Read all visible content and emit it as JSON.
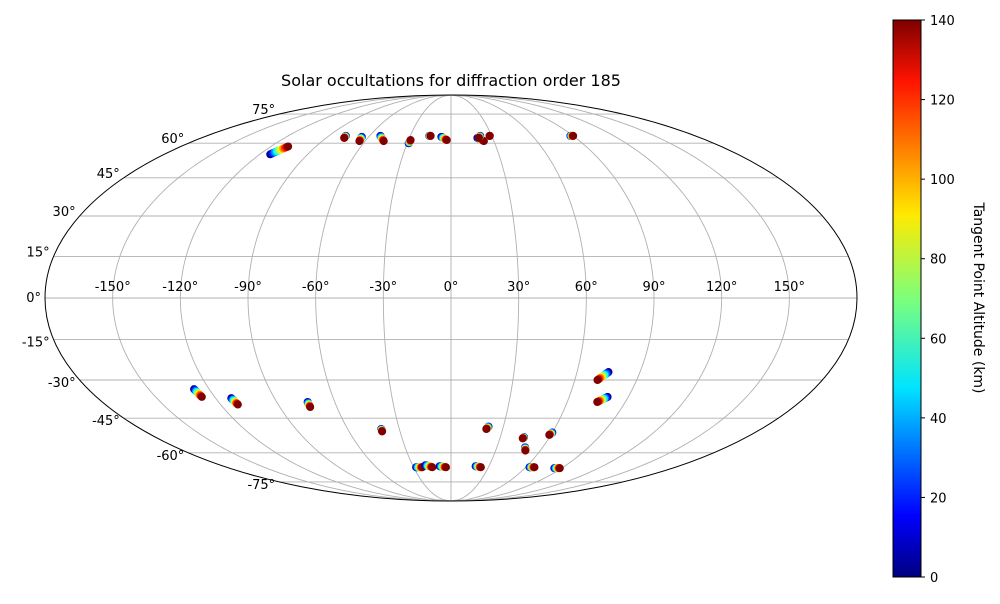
{
  "chart_data": {
    "type": "scatter",
    "projection": "mollweide",
    "title": "Solar occultations for diffraction order 185",
    "grid": true,
    "lon_ticks": [
      -150,
      -120,
      -90,
      -60,
      -30,
      0,
      30,
      60,
      90,
      120,
      150
    ],
    "lat_ticks": [
      -75,
      -60,
      -45,
      -30,
      -15,
      0,
      15,
      30,
      45,
      60,
      75
    ],
    "lon_tick_labels": [
      "-150°",
      "-120°",
      "-90°",
      "-60°",
      "-30°",
      "0°",
      "30°",
      "60°",
      "90°",
      "120°",
      "150°"
    ],
    "lat_tick_labels": [
      "-75°",
      "-60°",
      "-45°",
      "-30°",
      "-15°",
      "0°",
      "15°",
      "30°",
      "45°",
      "60°",
      "75°"
    ],
    "colorbar": {
      "label": "Tangent Point Altitude (km)",
      "colormap": "jet",
      "range": [
        0,
        140
      ],
      "ticks": [
        0,
        20,
        40,
        60,
        80,
        100,
        120,
        140
      ],
      "tick_labels": [
        "0",
        "20",
        "40",
        "60",
        "80",
        "100",
        "120",
        "140"
      ]
    },
    "occultations": [
      {
        "lon_start": -113.5,
        "lat_start": 55.0,
        "lon_end": -108.5,
        "lat_end": 58.5
      },
      {
        "lon_start": -77.5,
        "lat_start": 63.5,
        "lon_end": -77.0,
        "lat_end": 62.5
      },
      {
        "lon_start": -65.0,
        "lat_start": 63.0,
        "lon_end": -64.0,
        "lat_end": 61.0
      },
      {
        "lon_start": -52.0,
        "lat_start": 63.5,
        "lon_end": -47.0,
        "lat_end": 61.0
      },
      {
        "lon_start": -29.0,
        "lat_start": 60.0,
        "lon_end": -28.5,
        "lat_end": 61.5
      },
      {
        "lon_start": -16.0,
        "lat_start": 63.5,
        "lon_end": -15.0,
        "lat_end": 63.5
      },
      {
        "lon_start": -7.0,
        "lat_start": 63.0,
        "lon_end": -3.0,
        "lat_end": 61.5
      },
      {
        "lon_start": 19.0,
        "lat_start": 62.5,
        "lon_end": 23.0,
        "lat_end": 61.0
      },
      {
        "lon_start": 21.5,
        "lat_start": 63.5,
        "lon_end": 20.0,
        "lat_end": 62.5
      },
      {
        "lon_start": 28.5,
        "lat_start": 63.5,
        "lon_end": 28.5,
        "lat_end": 63.5
      },
      {
        "lon_start": 88.0,
        "lat_start": 63.5,
        "lon_end": 90.0,
        "lat_end": 63.5
      },
      {
        "lon_start": -127.5,
        "lat_start": -33.5,
        "lon_end": -126.5,
        "lat_end": -36.5
      },
      {
        "lon_start": -112.0,
        "lat_start": -37.0,
        "lon_end": -111.0,
        "lat_end": -39.5
      },
      {
        "lon_start": -74.0,
        "lat_start": -38.5,
        "lon_end": -74.0,
        "lat_end": -40.5
      },
      {
        "lon_start": -40.5,
        "lat_start": -49.5,
        "lon_end": -40.5,
        "lat_end": -50.5
      },
      {
        "lon_start": -28.0,
        "lat_start": -67.0,
        "lon_end": -23.0,
        "lat_end": -67.0
      },
      {
        "lon_start": -20.0,
        "lat_start": -66.0,
        "lon_end": -15.0,
        "lat_end": -67.0
      },
      {
        "lon_start": -9.0,
        "lat_start": -66.5,
        "lon_end": -4.0,
        "lat_end": -67.0
      },
      {
        "lon_start": 21.5,
        "lat_start": -48.5,
        "lon_end": 20.5,
        "lat_end": -49.5
      },
      {
        "lon_start": 19.5,
        "lat_start": -66.5,
        "lon_end": 24.0,
        "lat_end": -67.0
      },
      {
        "lon_start": 44.5,
        "lat_start": -53.0,
        "lon_end": 44.0,
        "lat_end": -53.5
      },
      {
        "lon_start": 48.5,
        "lat_start": -57.5,
        "lon_end": 50.0,
        "lat_end": -59.0
      },
      {
        "lon_start": 60.0,
        "lat_start": -51.0,
        "lon_end": 59.0,
        "lat_end": -52.0
      },
      {
        "lon_start": 63.0,
        "lat_start": -67.0,
        "lon_end": 67.0,
        "lat_end": -67.0
      },
      {
        "lon_start": 84.0,
        "lat_start": -67.5,
        "lon_end": 88.5,
        "lat_end": -67.5
      },
      {
        "lon_start": 75.0,
        "lat_start": -27.0,
        "lon_end": 71.0,
        "lat_end": -30.0
      },
      {
        "lon_start": 79.5,
        "lat_start": -36.5,
        "lon_end": 75.5,
        "lat_end": -38.5
      }
    ]
  }
}
